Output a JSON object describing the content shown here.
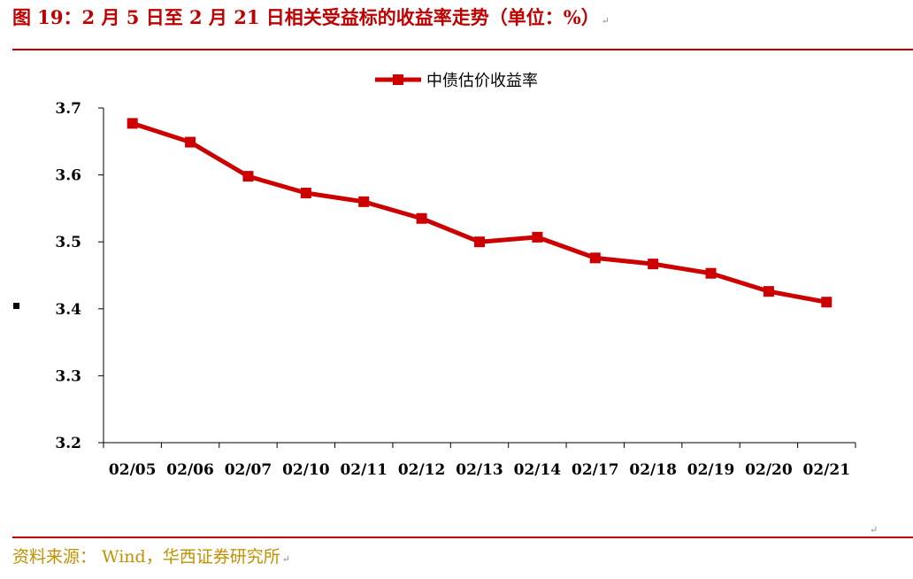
{
  "header": {
    "title": "图 19：2 月 5 日至 2 月 21 日相关受益标的收益率走势（单位：%）",
    "return_mark": "↵"
  },
  "footer": {
    "source": "资料来源： Wind，华西证券研究所",
    "return_mark": "↵"
  },
  "colors": {
    "accent": "#c00000",
    "series": "#cc0000",
    "source_text": "#c09000"
  },
  "chart_data": {
    "type": "line",
    "title": "",
    "xlabel": "",
    "ylabel": "",
    "categories": [
      "02/05",
      "02/06",
      "02/07",
      "02/10",
      "02/11",
      "02/12",
      "02/13",
      "02/14",
      "02/17",
      "02/18",
      "02/19",
      "02/20",
      "02/21"
    ],
    "series": [
      {
        "name": "中债估价收益率",
        "values": [
          3.677,
          3.649,
          3.598,
          3.573,
          3.56,
          3.535,
          3.5,
          3.507,
          3.476,
          3.467,
          3.453,
          3.426,
          3.41
        ],
        "marker": "square"
      }
    ],
    "ylim": [
      3.2,
      3.7
    ],
    "yticks": [
      "3.2",
      "3.3",
      "3.4",
      "3.5",
      "3.6",
      "3.7"
    ],
    "grid": false,
    "legend": "top-center"
  }
}
